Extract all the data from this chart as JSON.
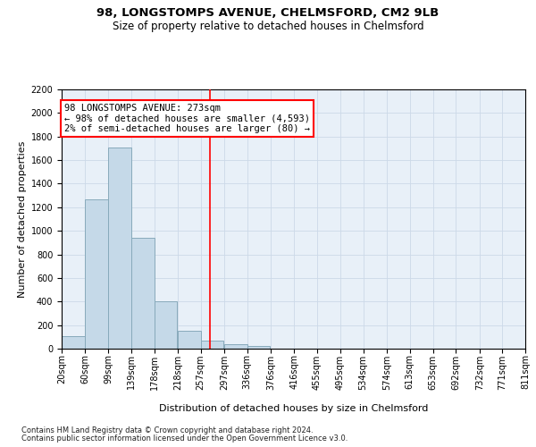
{
  "title1": "98, LONGSTOMPS AVENUE, CHELMSFORD, CM2 9LB",
  "title2": "Size of property relative to detached houses in Chelmsford",
  "xlabel": "Distribution of detached houses by size in Chelmsford",
  "ylabel": "Number of detached properties",
  "footnote1": "Contains HM Land Registry data © Crown copyright and database right 2024.",
  "footnote2": "Contains public sector information licensed under the Open Government Licence v3.0.",
  "bar_left_edges": [
    20,
    60,
    99,
    139,
    178,
    218,
    257,
    297,
    336,
    376,
    416,
    455,
    495,
    534,
    574,
    613,
    653,
    692,
    732,
    771
  ],
  "bar_heights": [
    110,
    1265,
    1710,
    940,
    405,
    155,
    70,
    40,
    25,
    0,
    0,
    0,
    0,
    0,
    0,
    0,
    0,
    0,
    0,
    0
  ],
  "bin_width": 39,
  "bar_color": "#c5d9e8",
  "bar_edge_color": "#88aabb",
  "vline_x": 273,
  "vline_color": "red",
  "ylim_max": 2200,
  "yticks": [
    0,
    200,
    400,
    600,
    800,
    1000,
    1200,
    1400,
    1600,
    1800,
    2000,
    2200
  ],
  "xtick_labels": [
    "20sqm",
    "60sqm",
    "99sqm",
    "139sqm",
    "178sqm",
    "218sqm",
    "257sqm",
    "297sqm",
    "336sqm",
    "376sqm",
    "416sqm",
    "455sqm",
    "495sqm",
    "534sqm",
    "574sqm",
    "613sqm",
    "653sqm",
    "692sqm",
    "732sqm",
    "771sqm",
    "811sqm"
  ],
  "annotation_title": "98 LONGSTOMPS AVENUE: 273sqm",
  "annotation_line1": "← 98% of detached houses are smaller (4,593)",
  "annotation_line2": "2% of semi-detached houses are larger (80) →",
  "grid_color": "#ccd9e8",
  "bg_color": "#e8f0f8",
  "title1_fontsize": 9.5,
  "title2_fontsize": 8.5,
  "xlabel_fontsize": 8,
  "ylabel_fontsize": 8,
  "tick_fontsize": 7,
  "annotation_fontsize": 7.5,
  "footnote_fontsize": 6
}
